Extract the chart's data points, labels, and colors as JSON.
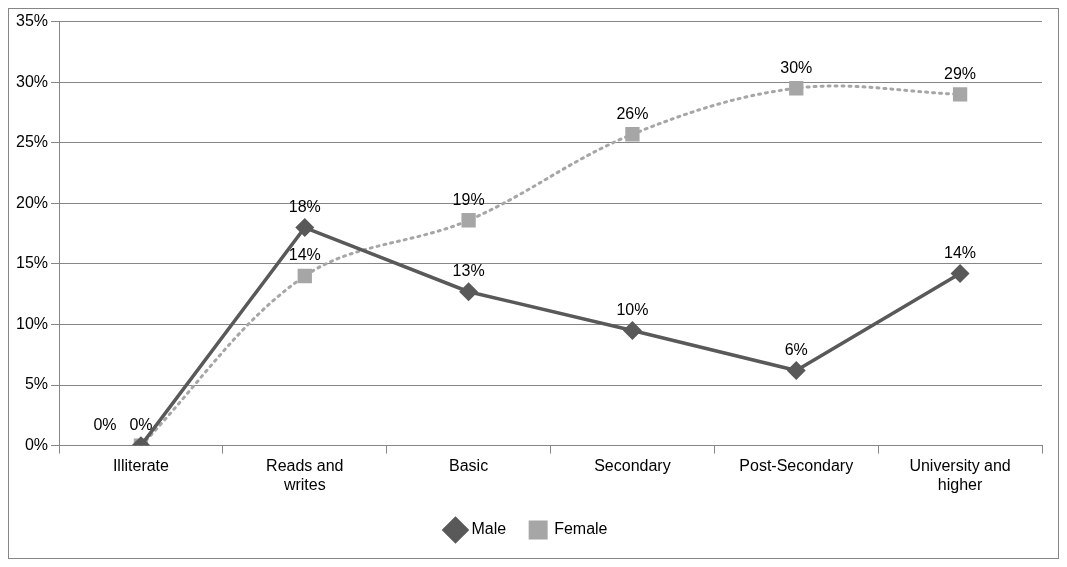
{
  "chart_data": {
    "type": "line",
    "categories": [
      "Illiterate",
      "Reads and writes",
      "Basic",
      "Secondary",
      "Post-Secondary",
      "University and higher"
    ],
    "series": [
      {
        "name": "Male",
        "color": "#595959",
        "marker": "diamond",
        "line_style": "solid",
        "values": [
          0,
          18,
          12.7,
          9.5,
          6.2,
          14.2
        ],
        "value_labels": [
          "0%",
          "18%",
          "13%",
          "10%",
          "6%",
          "14%"
        ]
      },
      {
        "name": "Female",
        "color": "#a6a6a6",
        "marker": "square",
        "line_style": "dotted",
        "values": [
          0,
          14,
          18.6,
          25.7,
          29.5,
          29.0
        ],
        "value_labels": [
          "0%",
          "14%",
          "19%",
          "26%",
          "30%",
          "29%"
        ]
      }
    ],
    "ylim": [
      0,
      35
    ],
    "yticks": [
      {
        "value": 0,
        "label": "0%"
      },
      {
        "value": 5,
        "label": "5%"
      },
      {
        "value": 10,
        "label": "10%"
      },
      {
        "value": 15,
        "label": "15%"
      },
      {
        "value": 20,
        "label": "20%"
      },
      {
        "value": 25,
        "label": "25%"
      },
      {
        "value": 30,
        "label": "30%"
      },
      {
        "value": 35,
        "label": "35%"
      }
    ],
    "grid": "y",
    "legend": "bottom"
  }
}
